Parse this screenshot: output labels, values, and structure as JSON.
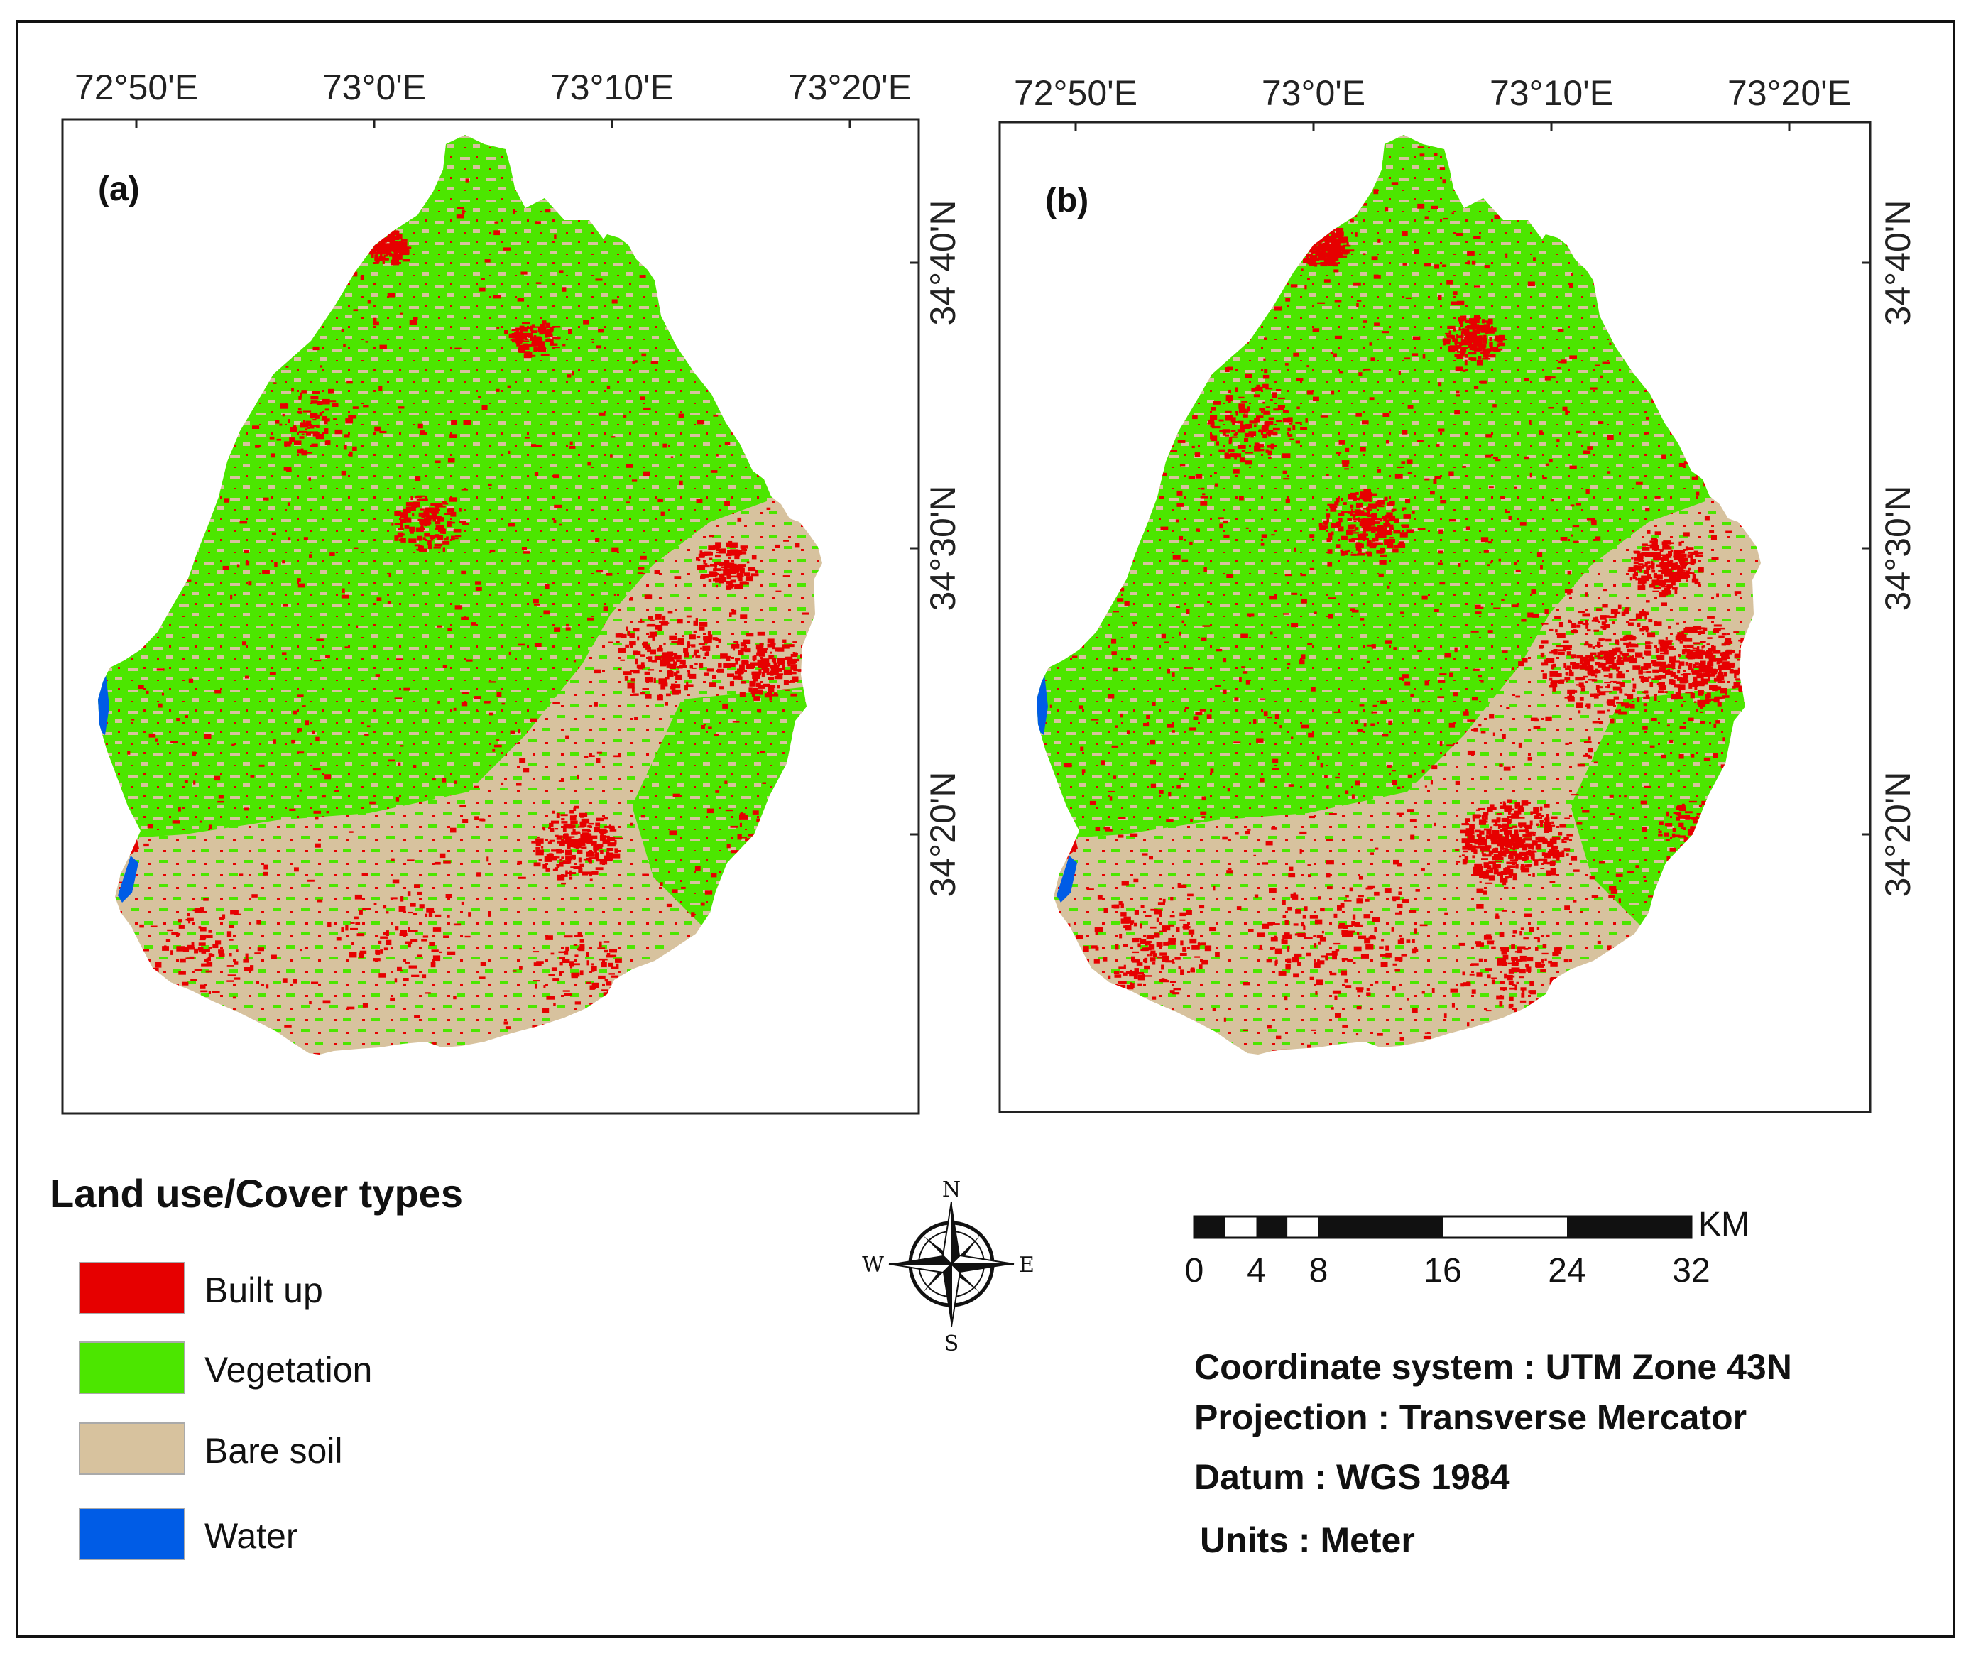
{
  "panels": [
    {
      "label": "(a)",
      "x_ticks": [
        "72°50'E",
        "73°0'E",
        "73°10'E",
        "73°20'E"
      ],
      "y_ticks": [
        "34°40'N",
        "34°30'N",
        "34°20'N"
      ],
      "built_up_extent": "moderate"
    },
    {
      "label": "(b)",
      "x_ticks": [
        "72°50'E",
        "73°0'E",
        "73°10'E",
        "73°20'E"
      ],
      "y_ticks": [
        "34°40'N",
        "34°30'N",
        "34°20'N"
      ],
      "built_up_extent": "extensive"
    }
  ],
  "legend": {
    "title": "Land use/Cover types",
    "items": [
      {
        "label": "Built up",
        "color": "#e60000"
      },
      {
        "label": "Vegetation",
        "color": "#4ce600"
      },
      {
        "label": "Bare soil",
        "color": "#d7c29e"
      },
      {
        "label": "Water",
        "color": "#005ce6"
      }
    ]
  },
  "compass": {
    "n": "N",
    "s": "S",
    "e": "E",
    "w": "W"
  },
  "scalebar": {
    "unit": "KM",
    "ticks": [
      {
        "label": "0",
        "value": 0
      },
      {
        "label": "4",
        "value": 4
      },
      {
        "label": "8",
        "value": 8
      },
      {
        "label": "16",
        "value": 16
      },
      {
        "label": "24",
        "value": 24
      },
      {
        "label": "32",
        "value": 32
      }
    ]
  },
  "metadata": [
    {
      "key": "Coordinate system",
      "value": "UTM Zone 43N"
    },
    {
      "key": "Projection",
      "value": "Transverse Mercator"
    },
    {
      "key": "Datum",
      "value": "WGS 1984"
    },
    {
      "key": "Units",
      "value": "Meter"
    }
  ]
}
